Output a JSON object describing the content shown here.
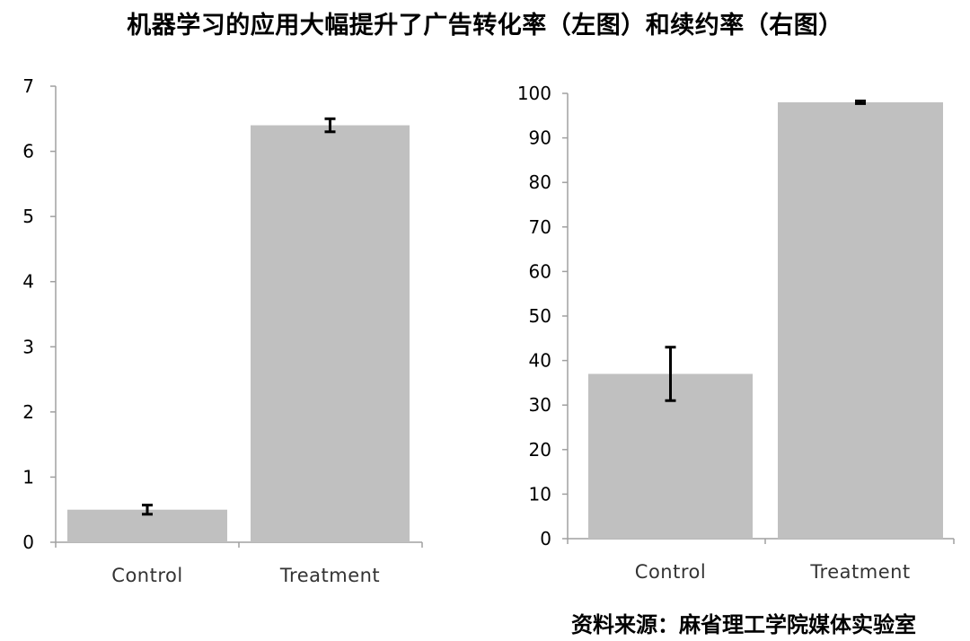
{
  "title": "机器学习的应用大幅提升了广告转化率（左图）和续约率（右图）",
  "source": "资料来源：麻省理工学院媒体实验室",
  "chart_data": [
    {
      "type": "bar",
      "categories": [
        "Control",
        "Treatment"
      ],
      "values": [
        0.5,
        6.4
      ],
      "errors": [
        0.07,
        0.1
      ],
      "ylim": [
        0,
        7
      ],
      "yticks": [
        0,
        1,
        2,
        3,
        4,
        5,
        6,
        7
      ],
      "bar_color": "#c0c0c0",
      "title": "",
      "xlabel": "",
      "ylabel": ""
    },
    {
      "type": "bar",
      "categories": [
        "Control",
        "Treatment"
      ],
      "values": [
        37,
        98
      ],
      "errors": [
        6,
        0.3
      ],
      "ylim": [
        0,
        100
      ],
      "yticks": [
        0,
        10,
        20,
        30,
        40,
        50,
        60,
        70,
        80,
        90,
        100
      ],
      "bar_color": "#c0c0c0",
      "title": "",
      "xlabel": "",
      "ylabel": ""
    }
  ]
}
